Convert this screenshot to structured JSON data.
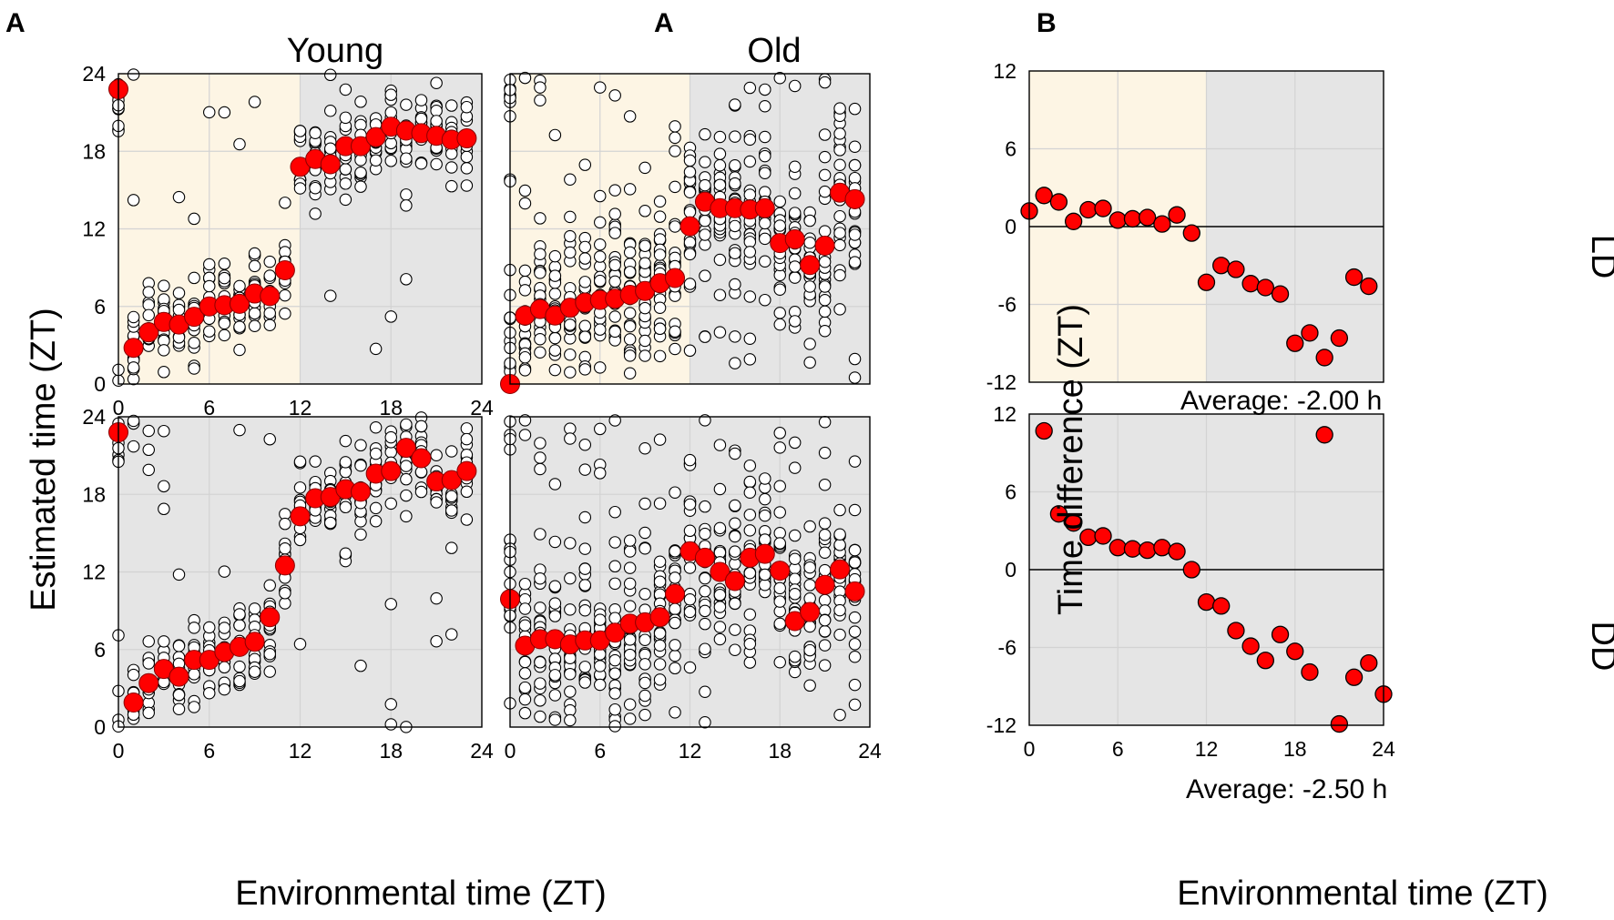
{
  "figure": {
    "panel_labels": [
      "A",
      "A",
      "B"
    ],
    "column_titles": [
      "Young",
      "Old"
    ],
    "row_labels": [
      "LD",
      "DD"
    ],
    "xlabel_A": "Environmental time (ZT)",
    "xlabel_B": "Environmental time (ZT)",
    "ylabel_A": "Estimated time (ZT)",
    "ylabel_B": "Time difference (ZT)",
    "colors": {
      "light_phase": "#fdf5e4",
      "dark_phase": "#e5e5e5",
      "mean_marker": "#ff0000",
      "grid": "#d3d3d3"
    }
  },
  "chart_data": [
    {
      "id": "young-ld",
      "type": "scatter",
      "title": "Young",
      "condition": "LD",
      "xlabel": "Environmental time (ZT)",
      "ylabel": "Estimated time (ZT)",
      "xlim": [
        0,
        24
      ],
      "ylim": [
        0,
        24
      ],
      "xticks": [
        0,
        6,
        12,
        18,
        24
      ],
      "yticks": [
        0,
        6,
        12,
        18,
        24
      ],
      "light_period": [
        0,
        12
      ],
      "dark_period": [
        12,
        24
      ],
      "mean_x": [
        0,
        1,
        2,
        3,
        4,
        5,
        6,
        7,
        8,
        9,
        10,
        11,
        12,
        13,
        14,
        15,
        16,
        17,
        18,
        19,
        20,
        21,
        22,
        23
      ],
      "mean_y": [
        22.8,
        2.8,
        4.0,
        4.8,
        4.6,
        5.2,
        6.0,
        6.1,
        6.2,
        7.0,
        6.8,
        8.8,
        16.8,
        17.4,
        17.0,
        18.4,
        18.4,
        19.1,
        19.9,
        19.6,
        19.4,
        19.2,
        18.9,
        19.0
      ]
    },
    {
      "id": "old-ld",
      "type": "scatter",
      "title": "Old",
      "condition": "LD",
      "xlabel": "Environmental time (ZT)",
      "ylabel": "Estimated time (ZT)",
      "xlim": [
        0,
        24
      ],
      "ylim": [
        0,
        24
      ],
      "xticks": [
        0,
        6,
        12,
        18,
        24
      ],
      "yticks": [
        0,
        6,
        12,
        18,
        24
      ],
      "light_period": [
        0,
        12
      ],
      "dark_period": [
        12,
        24
      ],
      "mean_x": [
        0,
        1,
        2,
        3,
        4,
        5,
        6,
        7,
        8,
        9,
        10,
        11,
        12,
        13,
        14,
        15,
        16,
        17,
        18,
        19,
        20,
        21,
        22,
        23
      ],
      "mean_y": [
        0.0,
        5.3,
        5.8,
        5.3,
        5.9,
        6.3,
        6.5,
        6.6,
        6.9,
        7.2,
        7.8,
        8.2,
        12.2,
        14.1,
        13.6,
        13.6,
        13.5,
        13.6,
        10.9,
        11.2,
        9.2,
        10.7,
        14.8,
        14.3
      ]
    },
    {
      "id": "young-dd",
      "type": "scatter",
      "title": "Young",
      "condition": "DD",
      "xlabel": "Environmental time (ZT)",
      "ylabel": "Estimated time (ZT)",
      "xlim": [
        0,
        24
      ],
      "ylim": [
        0,
        24
      ],
      "xticks": [
        0,
        6,
        12,
        18,
        24
      ],
      "yticks": [
        0,
        6,
        12,
        18,
        24
      ],
      "light_period": null,
      "dark_period": [
        0,
        24
      ],
      "mean_x": [
        0,
        1,
        2,
        3,
        4,
        5,
        6,
        7,
        8,
        9,
        10,
        11,
        12,
        13,
        14,
        15,
        16,
        17,
        18,
        19,
        20,
        21,
        22,
        23
      ],
      "mean_y": [
        22.8,
        1.9,
        3.4,
        4.5,
        3.9,
        5.2,
        5.2,
        5.8,
        6.2,
        6.6,
        8.5,
        12.5,
        16.3,
        17.7,
        17.8,
        18.4,
        18.2,
        19.6,
        19.8,
        21.6,
        20.8,
        19.0,
        19.1,
        19.8
      ]
    },
    {
      "id": "old-dd",
      "type": "scatter",
      "title": "Old",
      "condition": "DD",
      "xlabel": "Environmental time (ZT)",
      "ylabel": "Estimated time (ZT)",
      "xlim": [
        0,
        24
      ],
      "ylim": [
        0,
        24
      ],
      "xticks": [
        0,
        6,
        12,
        18,
        24
      ],
      "yticks": [
        0,
        6,
        12,
        18,
        24
      ],
      "light_period": null,
      "dark_period": [
        0,
        24
      ],
      "mean_x": [
        0,
        1,
        2,
        3,
        4,
        5,
        6,
        7,
        8,
        9,
        10,
        11,
        12,
        13,
        14,
        15,
        16,
        17,
        18,
        19,
        20,
        21,
        22,
        23
      ],
      "mean_y": [
        9.9,
        6.3,
        6.8,
        6.8,
        6.4,
        6.7,
        6.7,
        7.3,
        8.0,
        8.1,
        8.5,
        10.3,
        13.6,
        13.1,
        12.0,
        11.3,
        13.1,
        13.4,
        12.1,
        8.2,
        8.9,
        11.0,
        12.2,
        10.5
      ]
    },
    {
      "id": "diff-ld",
      "type": "scatter",
      "condition": "LD",
      "xlabel": "Environmental time (ZT)",
      "ylabel": "Time difference (ZT)",
      "xlim": [
        0,
        24
      ],
      "ylim": [
        -12,
        12
      ],
      "xticks": [
        0,
        6,
        12,
        18,
        24
      ],
      "yticks": [
        -12,
        -6,
        0,
        6,
        12
      ],
      "light_period": [
        0,
        12
      ],
      "dark_period": [
        12,
        24
      ],
      "annotation": "Average: -2.00 h",
      "x": [
        0,
        1,
        2,
        3,
        4,
        5,
        6,
        7,
        8,
        9,
        10,
        11,
        12,
        13,
        14,
        15,
        16,
        17,
        18,
        19,
        20,
        21,
        22,
        23
      ],
      "y": [
        1.2,
        2.4,
        1.9,
        0.4,
        1.3,
        1.4,
        0.5,
        0.6,
        0.7,
        0.2,
        0.9,
        -0.5,
        -4.3,
        -3.0,
        -3.3,
        -4.4,
        -4.7,
        -5.2,
        -9.0,
        -8.2,
        -10.1,
        -8.6,
        -3.9,
        -4.6
      ]
    },
    {
      "id": "diff-dd",
      "type": "scatter",
      "condition": "DD",
      "xlabel": "Environmental time (ZT)",
      "ylabel": "Time difference (ZT)",
      "xlim": [
        0,
        24
      ],
      "ylim": [
        -12,
        12
      ],
      "xticks": [
        0,
        6,
        12,
        18,
        24
      ],
      "yticks": [
        -12,
        -6,
        0,
        6,
        12
      ],
      "light_period": null,
      "dark_period": [
        0,
        24
      ],
      "annotation": "Average: -2.50 h",
      "x": [
        1,
        2,
        3,
        4,
        5,
        6,
        7,
        8,
        9,
        10,
        11,
        12,
        13,
        14,
        15,
        16,
        17,
        18,
        19,
        20,
        21,
        22,
        23,
        24
      ],
      "y": [
        10.7,
        4.3,
        3.6,
        2.5,
        2.6,
        1.7,
        1.6,
        1.5,
        1.7,
        1.4,
        0.0,
        -2.5,
        -2.8,
        -4.7,
        -5.9,
        -7.0,
        -5.0,
        -6.3,
        -7.9,
        10.4,
        -11.9,
        -8.3,
        -7.2,
        -9.6
      ]
    }
  ]
}
